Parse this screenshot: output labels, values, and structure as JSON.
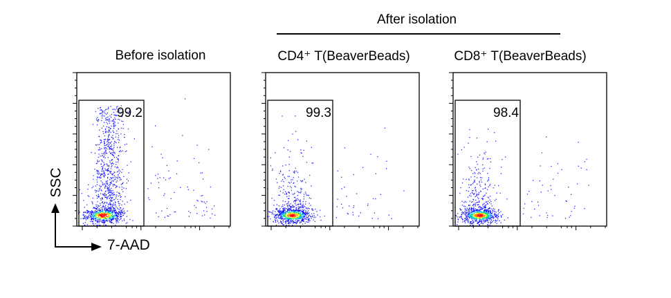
{
  "group_title": "After isolation",
  "chart_data": {
    "type": "scatter",
    "xlabel": "7-AAD",
    "ylabel": "SSC",
    "x_scale": "log",
    "panels": [
      {
        "title": "Before isolation",
        "gate_percent": "99.2"
      },
      {
        "title": "CD4⁺ T(BeaverBeads)",
        "gate_percent": "99.3"
      },
      {
        "title": "CD8⁺ T(BeaverBeads)",
        "gate_percent": "98.4"
      }
    ],
    "density_colors": [
      "#0000ff",
      "#00a0ff",
      "#00e060",
      "#ffff00",
      "#ff8000",
      "#ff0000"
    ]
  }
}
